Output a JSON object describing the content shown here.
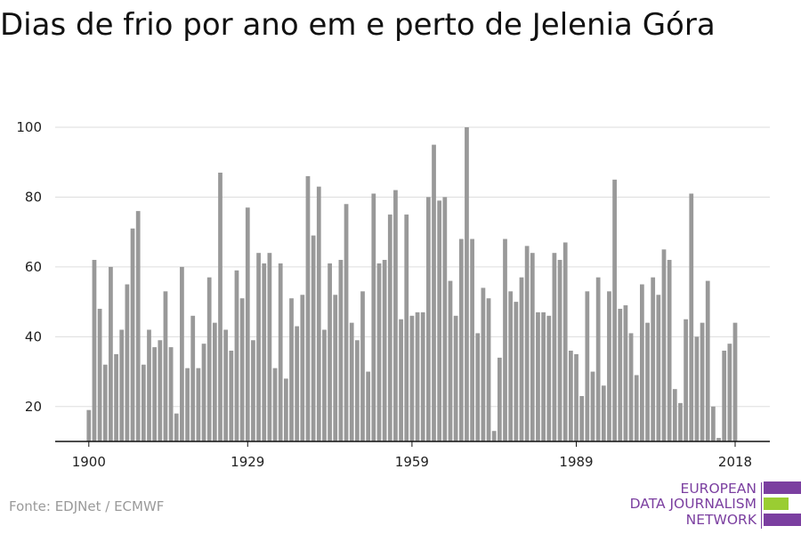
{
  "chart_data": {
    "type": "bar",
    "title": "Dias de frio por ano em e perto de Jelenia Góra",
    "xlabel": "",
    "ylabel": "",
    "x": [
      1900,
      1901,
      1902,
      1903,
      1904,
      1905,
      1906,
      1907,
      1908,
      1909,
      1910,
      1911,
      1912,
      1913,
      1914,
      1915,
      1916,
      1917,
      1918,
      1919,
      1920,
      1921,
      1922,
      1923,
      1924,
      1925,
      1926,
      1927,
      1928,
      1929,
      1930,
      1931,
      1932,
      1933,
      1934,
      1935,
      1936,
      1937,
      1938,
      1939,
      1940,
      1941,
      1942,
      1943,
      1944,
      1945,
      1946,
      1947,
      1948,
      1949,
      1950,
      1951,
      1952,
      1953,
      1954,
      1955,
      1956,
      1957,
      1958,
      1959,
      1960,
      1961,
      1962,
      1963,
      1964,
      1965,
      1966,
      1967,
      1968,
      1969,
      1970,
      1971,
      1972,
      1973,
      1974,
      1975,
      1976,
      1977,
      1978,
      1979,
      1980,
      1981,
      1982,
      1983,
      1984,
      1985,
      1986,
      1987,
      1988,
      1989,
      1990,
      1991,
      1992,
      1993,
      1994,
      1995,
      1996,
      1997,
      1998,
      1999,
      2000,
      2001,
      2002,
      2003,
      2004,
      2005,
      2006,
      2007,
      2008,
      2009,
      2010,
      2011,
      2012,
      2013,
      2014,
      2015,
      2016,
      2017,
      2018
    ],
    "values": [
      19,
      62,
      48,
      32,
      60,
      35,
      42,
      55,
      71,
      76,
      32,
      42,
      37,
      39,
      53,
      37,
      18,
      60,
      31,
      46,
      31,
      38,
      57,
      44,
      87,
      42,
      36,
      59,
      51,
      77,
      39,
      64,
      61,
      64,
      31,
      61,
      28,
      51,
      43,
      52,
      86,
      69,
      83,
      42,
      61,
      52,
      62,
      78,
      44,
      39,
      53,
      30,
      81,
      61,
      62,
      75,
      82,
      45,
      75,
      46,
      47,
      47,
      80,
      95,
      79,
      80,
      56,
      46,
      68,
      100,
      68,
      41,
      54,
      51,
      13,
      34,
      68,
      53,
      50,
      57,
      66,
      64,
      47,
      47,
      46,
      64,
      62,
      67,
      36,
      35,
      23,
      53,
      30,
      57,
      26,
      53,
      85,
      48,
      49,
      41,
      29,
      55,
      44,
      57,
      52,
      65,
      62,
      25,
      21,
      45,
      81,
      40,
      44,
      56,
      20,
      11,
      36,
      38,
      44
    ],
    "xticks": [
      "1900",
      "1929",
      "1959",
      "1989",
      "2018"
    ],
    "yticks": [
      "20",
      "40",
      "60",
      "80",
      "100"
    ],
    "xlim": [
      1900,
      2018
    ],
    "ylim": [
      10,
      100
    ],
    "grid": true,
    "bar_color": "#999999",
    "grid_color": "#dddddd",
    "axis_color": "#111111"
  },
  "footer": {
    "source": "Fonte: EDJNet / ECMWF"
  },
  "logo": {
    "line1": "EUROPEAN",
    "line2": "DATA JOURNALISM",
    "line3": "NETWORK",
    "color_purple": "#7b3fa0",
    "color_green": "#9acd32"
  }
}
